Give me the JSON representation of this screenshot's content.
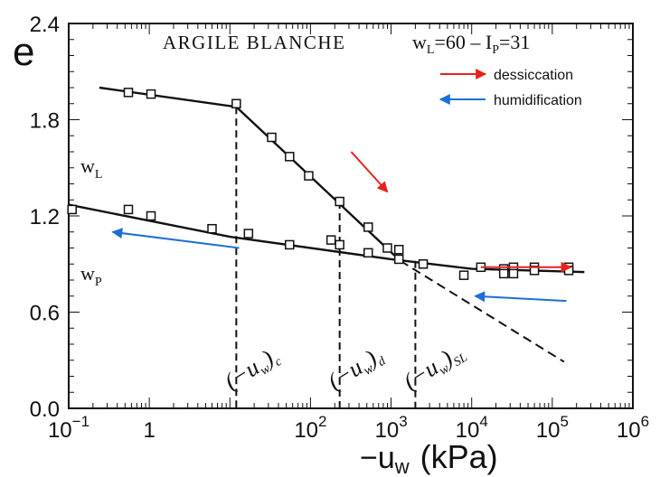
{
  "chart_data": {
    "type": "scatter",
    "title": "ARGILE BLANCHE",
    "subtitle_parts": {
      "wl": "w",
      "wl_sub": "L",
      "wl_val": "=60 – I",
      "ip_sub": "P",
      "ip_val": "=31"
    },
    "ylabel": "e",
    "xlabel_main": "−u",
    "xlabel_sub": "w",
    "xlabel_unit": "(kPa)",
    "x_scale": "log",
    "xlim": [
      0.1,
      1000000
    ],
    "ylim": [
      0.0,
      2.4
    ],
    "y_ticks": [
      "0.0",
      "0.6",
      "1.2",
      "1.8",
      "2.4"
    ],
    "x_ticks": [
      {
        "base": "10",
        "exp": "−1",
        "value": 0.1
      },
      {
        "base": "1",
        "exp": "",
        "value": 1
      },
      {
        "base": "10",
        "exp": "2",
        "value": 100
      },
      {
        "base": "10",
        "exp": "3",
        "value": 1000
      },
      {
        "base": "10",
        "exp": "4",
        "value": 10000
      },
      {
        "base": "10",
        "exp": "5",
        "value": 100000
      },
      {
        "base": "10",
        "exp": "6",
        "value": 1000000
      }
    ],
    "series": [
      {
        "points": [
          {
            "x": 0.55,
            "y": 1.97
          },
          {
            "x": 1.05,
            "y": 1.96
          },
          {
            "x": 12,
            "y": 1.9
          },
          {
            "x": 33,
            "y": 1.69
          },
          {
            "x": 55,
            "y": 1.57
          },
          {
            "x": 95,
            "y": 1.45
          },
          {
            "x": 230,
            "y": 1.29
          },
          {
            "x": 520,
            "y": 1.13
          },
          {
            "x": 900,
            "y": 1.0
          },
          {
            "x": 1250,
            "y": 0.99
          }
        ]
      },
      {
        "points": [
          {
            "x": 0.11,
            "y": 1.24
          },
          {
            "x": 0.55,
            "y": 1.24
          },
          {
            "x": 1.05,
            "y": 1.2
          },
          {
            "x": 6,
            "y": 1.12
          },
          {
            "x": 17,
            "y": 1.09
          },
          {
            "x": 55,
            "y": 1.02
          },
          {
            "x": 180,
            "y": 1.05
          },
          {
            "x": 230,
            "y": 1.02
          },
          {
            "x": 520,
            "y": 0.97
          },
          {
            "x": 1250,
            "y": 0.93
          },
          {
            "x": 2500,
            "y": 0.9
          },
          {
            "x": 8000,
            "y": 0.83
          },
          {
            "x": 13000,
            "y": 0.88
          },
          {
            "x": 25000,
            "y": 0.87
          },
          {
            "x": 25000,
            "y": 0.84
          },
          {
            "x": 33000,
            "y": 0.88
          },
          {
            "x": 33000,
            "y": 0.84
          },
          {
            "x": 60000,
            "y": 0.88
          },
          {
            "x": 60000,
            "y": 0.86
          },
          {
            "x": 160000,
            "y": 0.88
          },
          {
            "x": 160000,
            "y": 0.86
          }
        ]
      }
    ],
    "fit_lines": [
      {
        "points": [
          [
            0.24,
            2.0
          ],
          [
            12,
            1.88
          ],
          [
            1300,
            0.92
          ]
        ]
      },
      {
        "points": [
          [
            0.1,
            1.27
          ],
          [
            10,
            1.07
          ],
          [
            1000,
            0.93
          ],
          [
            10000,
            0.87
          ],
          [
            250000,
            0.85
          ]
        ]
      }
    ],
    "sl_extension": [
      [
        1300,
        0.92
      ],
      [
        140000,
        0.29
      ]
    ],
    "verticals": [
      {
        "x": 12,
        "y_top": 1.88,
        "label": "(−u",
        "label_sub": "w",
        "label_close": ")",
        "label_sub2": "c"
      },
      {
        "x": 230,
        "y_top": 1.29,
        "label": "(−u",
        "label_sub": "w",
        "label_close": ")",
        "label_sub2": "d"
      },
      {
        "x": 2000,
        "y_top": 0.92,
        "label": "(−u",
        "label_sub": "w",
        "label_close": ")",
        "label_sub2": "SL"
      }
    ],
    "curve_labels": [
      {
        "base": "w",
        "sub": "L",
        "x": 0.14,
        "y": 1.47
      },
      {
        "base": "w",
        "sub": "P",
        "x": 0.14,
        "y": 0.8
      }
    ],
    "legend": [
      {
        "label": "dessiccation",
        "color": "#e8211d",
        "direction": "right"
      },
      {
        "label": "humidification",
        "color": "#1c6fd6",
        "direction": "left"
      }
    ],
    "annotation_arrows": [
      {
        "color": "#e8211d",
        "from": [
          320,
          1.6
        ],
        "to": [
          900,
          1.35
        ]
      },
      {
        "color": "#1c6fd6",
        "from": [
          13,
          1.0
        ],
        "to": [
          0.35,
          1.1
        ]
      },
      {
        "color": "#e8211d",
        "from": [
          13000,
          0.88
        ],
        "to": [
          170000,
          0.88
        ]
      },
      {
        "color": "#1c6fd6",
        "from": [
          150000,
          0.67
        ],
        "to": [
          11000,
          0.7
        ]
      }
    ]
  }
}
